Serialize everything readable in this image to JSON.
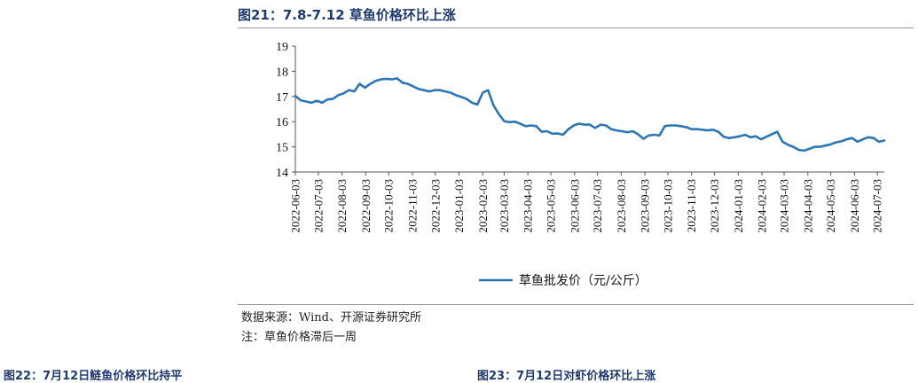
{
  "figure": {
    "title": "图21：7.8-7.12 草鱼价格环比上涨",
    "source": "数据来源：Wind、开源证券研究所",
    "note": "注：草鱼价格滞后一周"
  },
  "next_figures": {
    "left": "图22：7月12日鲢鱼价格环比持平",
    "right": "图23：7月12日对虾价格环比上涨"
  },
  "colors": {
    "line": "#2e75b6",
    "title": "#1e3a6e",
    "axis": "#555555"
  },
  "chart_data": {
    "type": "line",
    "title": "",
    "xlabel": "",
    "ylabel": "",
    "ylim": [
      14,
      19
    ],
    "yticks": [
      "14",
      "15",
      "16",
      "17",
      "18",
      "19"
    ],
    "grid": false,
    "legend": "bottom-center",
    "x_start": "2022-06-03",
    "x_end": "2024-07-12",
    "xticks": [
      "2022-06-03",
      "2022-07-03",
      "2022-08-03",
      "2022-09-03",
      "2022-10-03",
      "2022-11-03",
      "2022-12-03",
      "2023-01-03",
      "2023-02-03",
      "2023-03-03",
      "2023-04-03",
      "2023-05-03",
      "2023-06-03",
      "2023-07-03",
      "2023-08-03",
      "2023-09-03",
      "2023-10-03",
      "2023-11-03",
      "2023-12-03",
      "2024-01-03",
      "2024-02-03",
      "2024-03-03",
      "2024-04-03",
      "2024-05-03",
      "2024-06-03",
      "2024-07-03"
    ],
    "series": [
      {
        "name": "草鱼批发价（元/公斤）",
        "points": [
          [
            "2022-06-03",
            17.02
          ],
          [
            "2022-06-10",
            16.85
          ],
          [
            "2022-06-17",
            16.8
          ],
          [
            "2022-06-24",
            16.75
          ],
          [
            "2022-07-01",
            16.83
          ],
          [
            "2022-07-08",
            16.75
          ],
          [
            "2022-07-15",
            16.88
          ],
          [
            "2022-07-22",
            16.9
          ],
          [
            "2022-07-29",
            17.05
          ],
          [
            "2022-08-05",
            17.12
          ],
          [
            "2022-08-12",
            17.25
          ],
          [
            "2022-08-19",
            17.2
          ],
          [
            "2022-08-26",
            17.5
          ],
          [
            "2022-09-02",
            17.35
          ],
          [
            "2022-09-09",
            17.5
          ],
          [
            "2022-09-16",
            17.62
          ],
          [
            "2022-09-23",
            17.68
          ],
          [
            "2022-09-30",
            17.7
          ],
          [
            "2022-10-07",
            17.68
          ],
          [
            "2022-10-14",
            17.72
          ],
          [
            "2022-10-21",
            17.55
          ],
          [
            "2022-10-28",
            17.5
          ],
          [
            "2022-11-04",
            17.4
          ],
          [
            "2022-11-11",
            17.3
          ],
          [
            "2022-11-18",
            17.25
          ],
          [
            "2022-11-25",
            17.2
          ],
          [
            "2022-12-02",
            17.25
          ],
          [
            "2022-12-09",
            17.25
          ],
          [
            "2022-12-16",
            17.2
          ],
          [
            "2022-12-23",
            17.15
          ],
          [
            "2022-12-30",
            17.05
          ],
          [
            "2023-01-06",
            16.98
          ],
          [
            "2023-01-13",
            16.9
          ],
          [
            "2023-01-20",
            16.75
          ],
          [
            "2023-01-27",
            16.68
          ],
          [
            "2023-02-03",
            17.15
          ],
          [
            "2023-02-10",
            17.25
          ],
          [
            "2023-02-17",
            16.65
          ],
          [
            "2023-02-24",
            16.3
          ],
          [
            "2023-03-03",
            16.02
          ],
          [
            "2023-03-10",
            15.98
          ],
          [
            "2023-03-17",
            16.0
          ],
          [
            "2023-03-24",
            15.92
          ],
          [
            "2023-03-31",
            15.82
          ],
          [
            "2023-04-07",
            15.85
          ],
          [
            "2023-04-14",
            15.82
          ],
          [
            "2023-04-21",
            15.6
          ],
          [
            "2023-04-28",
            15.62
          ],
          [
            "2023-05-05",
            15.52
          ],
          [
            "2023-05-12",
            15.53
          ],
          [
            "2023-05-19",
            15.48
          ],
          [
            "2023-05-26",
            15.7
          ],
          [
            "2023-06-02",
            15.85
          ],
          [
            "2023-06-09",
            15.92
          ],
          [
            "2023-06-16",
            15.88
          ],
          [
            "2023-06-23",
            15.88
          ],
          [
            "2023-06-30",
            15.75
          ],
          [
            "2023-07-07",
            15.88
          ],
          [
            "2023-07-14",
            15.85
          ],
          [
            "2023-07-21",
            15.7
          ],
          [
            "2023-07-28",
            15.65
          ],
          [
            "2023-08-04",
            15.62
          ],
          [
            "2023-08-11",
            15.58
          ],
          [
            "2023-08-18",
            15.62
          ],
          [
            "2023-08-25",
            15.5
          ],
          [
            "2023-09-01",
            15.32
          ],
          [
            "2023-09-08",
            15.45
          ],
          [
            "2023-09-15",
            15.48
          ],
          [
            "2023-09-22",
            15.45
          ],
          [
            "2023-09-29",
            15.82
          ],
          [
            "2023-10-06",
            15.85
          ],
          [
            "2023-10-13",
            15.85
          ],
          [
            "2023-10-20",
            15.82
          ],
          [
            "2023-10-27",
            15.78
          ],
          [
            "2023-11-03",
            15.7
          ],
          [
            "2023-11-10",
            15.7
          ],
          [
            "2023-11-17",
            15.68
          ],
          [
            "2023-11-24",
            15.65
          ],
          [
            "2023-12-01",
            15.68
          ],
          [
            "2023-12-08",
            15.6
          ],
          [
            "2023-12-15",
            15.4
          ],
          [
            "2023-12-22",
            15.35
          ],
          [
            "2023-12-29",
            15.38
          ],
          [
            "2024-01-05",
            15.42
          ],
          [
            "2024-01-12",
            15.48
          ],
          [
            "2024-01-19",
            15.38
          ],
          [
            "2024-01-26",
            15.42
          ],
          [
            "2024-02-02",
            15.3
          ],
          [
            "2024-02-09",
            15.4
          ],
          [
            "2024-02-16",
            15.5
          ],
          [
            "2024-02-23",
            15.6
          ],
          [
            "2024-03-01",
            15.2
          ],
          [
            "2024-03-08",
            15.08
          ],
          [
            "2024-03-15",
            15.0
          ],
          [
            "2024-03-22",
            14.88
          ],
          [
            "2024-03-29",
            14.85
          ],
          [
            "2024-04-05",
            14.92
          ],
          [
            "2024-04-12",
            15.0
          ],
          [
            "2024-04-19",
            15.0
          ],
          [
            "2024-04-26",
            15.05
          ],
          [
            "2024-05-03",
            15.1
          ],
          [
            "2024-05-10",
            15.18
          ],
          [
            "2024-05-17",
            15.22
          ],
          [
            "2024-05-24",
            15.3
          ],
          [
            "2024-05-31",
            15.35
          ],
          [
            "2024-06-07",
            15.2
          ],
          [
            "2024-06-14",
            15.3
          ],
          [
            "2024-06-21",
            15.38
          ],
          [
            "2024-06-28",
            15.35
          ],
          [
            "2024-07-05",
            15.2
          ],
          [
            "2024-07-12",
            15.25
          ]
        ]
      }
    ]
  }
}
